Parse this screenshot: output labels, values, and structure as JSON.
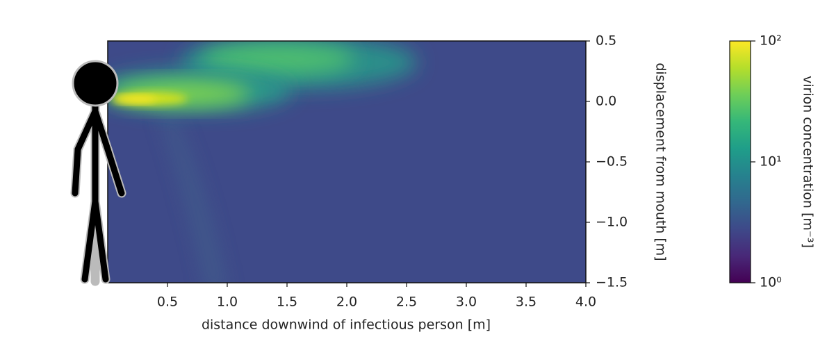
{
  "chart_data": {
    "type": "heatmap",
    "xlabel": "distance downwind of infectious person [m]",
    "ylabel": "displacement from mouth [m]",
    "xlim": [
      0,
      4
    ],
    "xticks": [
      0.5,
      {
        "value": 1,
        "label": "1.0"
      },
      1.5,
      {
        "value": 2,
        "label": "2.0"
      },
      2.5,
      {
        "value": 3,
        "label": "3.0"
      },
      3.5,
      {
        "value": 4,
        "label": "4.0"
      }
    ],
    "ylim": [
      -1.5,
      0.5
    ],
    "yticks": [
      0.5,
      {
        "value": 0,
        "label": "0.0"
      },
      {
        "value": -0.5,
        "label": "−0.5"
      },
      {
        "value": -1,
        "label": "−1.0"
      },
      {
        "value": -1.5,
        "label": "−1.5"
      }
    ],
    "colorbar": {
      "label": "virion concentration [m⁻³]",
      "colormap": "viridis",
      "log_scale": true,
      "lim": [
        1,
        100
      ],
      "ticks": [
        {
          "value": 1,
          "label": "10⁰"
        },
        {
          "value": 10,
          "label": "10¹"
        },
        {
          "value": 100,
          "label": "10²"
        }
      ]
    }
  }
}
